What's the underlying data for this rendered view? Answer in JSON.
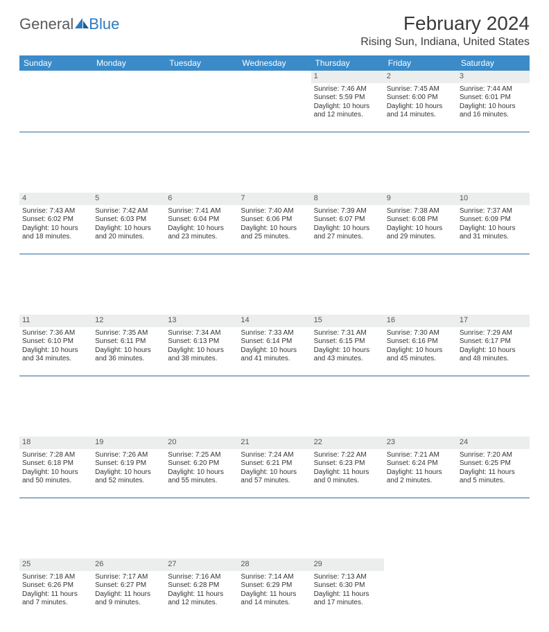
{
  "brand": {
    "part1": "General",
    "part2": "Blue"
  },
  "title": "February 2024",
  "location": "Rising Sun, Indiana, United States",
  "colors": {
    "header_bg": "#3b8bc9",
    "header_text": "#ffffff",
    "daynum_bg": "#eceded",
    "rule": "#2a6aa0",
    "text": "#333333"
  },
  "day_headers": [
    "Sunday",
    "Monday",
    "Tuesday",
    "Wednesday",
    "Thursday",
    "Friday",
    "Saturday"
  ],
  "weeks": [
    [
      {
        "day": "",
        "sunrise": "",
        "sunset": "",
        "daylight1": "",
        "daylight2": ""
      },
      {
        "day": "",
        "sunrise": "",
        "sunset": "",
        "daylight1": "",
        "daylight2": ""
      },
      {
        "day": "",
        "sunrise": "",
        "sunset": "",
        "daylight1": "",
        "daylight2": ""
      },
      {
        "day": "",
        "sunrise": "",
        "sunset": "",
        "daylight1": "",
        "daylight2": ""
      },
      {
        "day": "1",
        "sunrise": "Sunrise: 7:46 AM",
        "sunset": "Sunset: 5:59 PM",
        "daylight1": "Daylight: 10 hours",
        "daylight2": "and 12 minutes."
      },
      {
        "day": "2",
        "sunrise": "Sunrise: 7:45 AM",
        "sunset": "Sunset: 6:00 PM",
        "daylight1": "Daylight: 10 hours",
        "daylight2": "and 14 minutes."
      },
      {
        "day": "3",
        "sunrise": "Sunrise: 7:44 AM",
        "sunset": "Sunset: 6:01 PM",
        "daylight1": "Daylight: 10 hours",
        "daylight2": "and 16 minutes."
      }
    ],
    [
      {
        "day": "4",
        "sunrise": "Sunrise: 7:43 AM",
        "sunset": "Sunset: 6:02 PM",
        "daylight1": "Daylight: 10 hours",
        "daylight2": "and 18 minutes."
      },
      {
        "day": "5",
        "sunrise": "Sunrise: 7:42 AM",
        "sunset": "Sunset: 6:03 PM",
        "daylight1": "Daylight: 10 hours",
        "daylight2": "and 20 minutes."
      },
      {
        "day": "6",
        "sunrise": "Sunrise: 7:41 AM",
        "sunset": "Sunset: 6:04 PM",
        "daylight1": "Daylight: 10 hours",
        "daylight2": "and 23 minutes."
      },
      {
        "day": "7",
        "sunrise": "Sunrise: 7:40 AM",
        "sunset": "Sunset: 6:06 PM",
        "daylight1": "Daylight: 10 hours",
        "daylight2": "and 25 minutes."
      },
      {
        "day": "8",
        "sunrise": "Sunrise: 7:39 AM",
        "sunset": "Sunset: 6:07 PM",
        "daylight1": "Daylight: 10 hours",
        "daylight2": "and 27 minutes."
      },
      {
        "day": "9",
        "sunrise": "Sunrise: 7:38 AM",
        "sunset": "Sunset: 6:08 PM",
        "daylight1": "Daylight: 10 hours",
        "daylight2": "and 29 minutes."
      },
      {
        "day": "10",
        "sunrise": "Sunrise: 7:37 AM",
        "sunset": "Sunset: 6:09 PM",
        "daylight1": "Daylight: 10 hours",
        "daylight2": "and 31 minutes."
      }
    ],
    [
      {
        "day": "11",
        "sunrise": "Sunrise: 7:36 AM",
        "sunset": "Sunset: 6:10 PM",
        "daylight1": "Daylight: 10 hours",
        "daylight2": "and 34 minutes."
      },
      {
        "day": "12",
        "sunrise": "Sunrise: 7:35 AM",
        "sunset": "Sunset: 6:11 PM",
        "daylight1": "Daylight: 10 hours",
        "daylight2": "and 36 minutes."
      },
      {
        "day": "13",
        "sunrise": "Sunrise: 7:34 AM",
        "sunset": "Sunset: 6:13 PM",
        "daylight1": "Daylight: 10 hours",
        "daylight2": "and 38 minutes."
      },
      {
        "day": "14",
        "sunrise": "Sunrise: 7:33 AM",
        "sunset": "Sunset: 6:14 PM",
        "daylight1": "Daylight: 10 hours",
        "daylight2": "and 41 minutes."
      },
      {
        "day": "15",
        "sunrise": "Sunrise: 7:31 AM",
        "sunset": "Sunset: 6:15 PM",
        "daylight1": "Daylight: 10 hours",
        "daylight2": "and 43 minutes."
      },
      {
        "day": "16",
        "sunrise": "Sunrise: 7:30 AM",
        "sunset": "Sunset: 6:16 PM",
        "daylight1": "Daylight: 10 hours",
        "daylight2": "and 45 minutes."
      },
      {
        "day": "17",
        "sunrise": "Sunrise: 7:29 AM",
        "sunset": "Sunset: 6:17 PM",
        "daylight1": "Daylight: 10 hours",
        "daylight2": "and 48 minutes."
      }
    ],
    [
      {
        "day": "18",
        "sunrise": "Sunrise: 7:28 AM",
        "sunset": "Sunset: 6:18 PM",
        "daylight1": "Daylight: 10 hours",
        "daylight2": "and 50 minutes."
      },
      {
        "day": "19",
        "sunrise": "Sunrise: 7:26 AM",
        "sunset": "Sunset: 6:19 PM",
        "daylight1": "Daylight: 10 hours",
        "daylight2": "and 52 minutes."
      },
      {
        "day": "20",
        "sunrise": "Sunrise: 7:25 AM",
        "sunset": "Sunset: 6:20 PM",
        "daylight1": "Daylight: 10 hours",
        "daylight2": "and 55 minutes."
      },
      {
        "day": "21",
        "sunrise": "Sunrise: 7:24 AM",
        "sunset": "Sunset: 6:21 PM",
        "daylight1": "Daylight: 10 hours",
        "daylight2": "and 57 minutes."
      },
      {
        "day": "22",
        "sunrise": "Sunrise: 7:22 AM",
        "sunset": "Sunset: 6:23 PM",
        "daylight1": "Daylight: 11 hours",
        "daylight2": "and 0 minutes."
      },
      {
        "day": "23",
        "sunrise": "Sunrise: 7:21 AM",
        "sunset": "Sunset: 6:24 PM",
        "daylight1": "Daylight: 11 hours",
        "daylight2": "and 2 minutes."
      },
      {
        "day": "24",
        "sunrise": "Sunrise: 7:20 AM",
        "sunset": "Sunset: 6:25 PM",
        "daylight1": "Daylight: 11 hours",
        "daylight2": "and 5 minutes."
      }
    ],
    [
      {
        "day": "25",
        "sunrise": "Sunrise: 7:18 AM",
        "sunset": "Sunset: 6:26 PM",
        "daylight1": "Daylight: 11 hours",
        "daylight2": "and 7 minutes."
      },
      {
        "day": "26",
        "sunrise": "Sunrise: 7:17 AM",
        "sunset": "Sunset: 6:27 PM",
        "daylight1": "Daylight: 11 hours",
        "daylight2": "and 9 minutes."
      },
      {
        "day": "27",
        "sunrise": "Sunrise: 7:16 AM",
        "sunset": "Sunset: 6:28 PM",
        "daylight1": "Daylight: 11 hours",
        "daylight2": "and 12 minutes."
      },
      {
        "day": "28",
        "sunrise": "Sunrise: 7:14 AM",
        "sunset": "Sunset: 6:29 PM",
        "daylight1": "Daylight: 11 hours",
        "daylight2": "and 14 minutes."
      },
      {
        "day": "29",
        "sunrise": "Sunrise: 7:13 AM",
        "sunset": "Sunset: 6:30 PM",
        "daylight1": "Daylight: 11 hours",
        "daylight2": "and 17 minutes."
      },
      {
        "day": "",
        "sunrise": "",
        "sunset": "",
        "daylight1": "",
        "daylight2": ""
      },
      {
        "day": "",
        "sunrise": "",
        "sunset": "",
        "daylight1": "",
        "daylight2": ""
      }
    ]
  ]
}
